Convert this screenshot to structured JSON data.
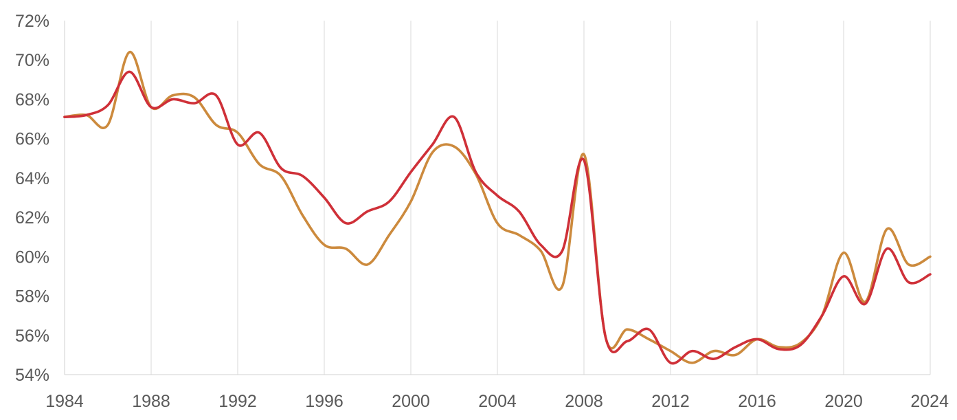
{
  "chart_data": {
    "type": "line",
    "title": "",
    "xlabel": "",
    "ylabel": "",
    "x": [
      1984,
      1985,
      1986,
      1987,
      1988,
      1989,
      1990,
      1991,
      1992,
      1993,
      1994,
      1995,
      1996,
      1997,
      1998,
      1999,
      2000,
      2001,
      2002,
      2003,
      2004,
      2005,
      2006,
      2007,
      2008,
      2009,
      2010,
      2011,
      2012,
      2013,
      2014,
      2015,
      2016,
      2017,
      2018,
      2019,
      2020,
      2021,
      2022,
      2023,
      2024
    ],
    "xlim": [
      1984,
      2024
    ],
    "ylim": [
      54,
      72
    ],
    "grid": "vertical",
    "x_ticks": [
      1984,
      1988,
      1992,
      1996,
      2000,
      2004,
      2008,
      2012,
      2016,
      2020,
      2024
    ],
    "x_tick_labels": [
      "1984",
      "1988",
      "1992",
      "1996",
      "2000",
      "2004",
      "2008",
      "2012",
      "2016",
      "2020",
      "2024"
    ],
    "y_ticks": [
      54,
      56,
      58,
      60,
      62,
      64,
      66,
      68,
      70,
      72
    ],
    "y_tick_labels": [
      "54%",
      "56%",
      "58%",
      "60%",
      "62%",
      "64%",
      "66%",
      "68%",
      "70%",
      "72%"
    ],
    "series": [
      {
        "color": "#cc8a3d",
        "values": [
          67.1,
          67.2,
          66.7,
          70.4,
          67.6,
          68.2,
          68.1,
          66.7,
          66.3,
          64.7,
          64.1,
          62.1,
          60.6,
          60.4,
          59.6,
          61.1,
          62.8,
          65.3,
          65.6,
          64.2,
          61.7,
          61.1,
          60.3,
          58.5,
          65.2,
          55.9,
          56.3,
          55.8,
          55.2,
          54.6,
          55.2,
          55.0,
          55.8,
          55.4,
          55.6,
          57.0,
          60.2,
          57.7,
          61.4,
          59.6,
          60.0
        ]
      },
      {
        "color": "#cf3038",
        "values": [
          67.1,
          67.2,
          67.7,
          69.4,
          67.6,
          68.0,
          67.8,
          68.2,
          65.7,
          66.3,
          64.5,
          64.1,
          63.0,
          61.7,
          62.3,
          62.8,
          64.3,
          65.7,
          67.1,
          64.3,
          63.1,
          62.3,
          60.6,
          60.3,
          64.9,
          55.9,
          55.7,
          56.3,
          54.6,
          55.2,
          54.8,
          55.4,
          55.8,
          55.3,
          55.5,
          57.0,
          59.0,
          57.6,
          60.4,
          58.7,
          59.1
        ]
      }
    ]
  }
}
